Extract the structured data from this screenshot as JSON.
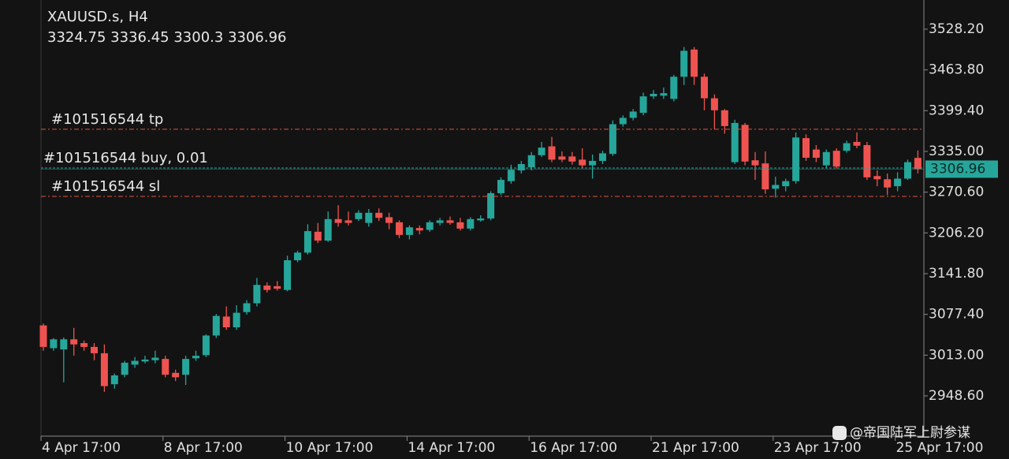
{
  "chart_data": {
    "type": "candlestick",
    "title": "XAUUSD.s, H4",
    "categories": [
      "4 Apr 17:00",
      null,
      null,
      null,
      null,
      null,
      null,
      null,
      null,
      null,
      null,
      null,
      "8 Apr 17:00",
      null,
      null,
      null,
      null,
      null,
      null,
      null,
      null,
      null,
      null,
      null,
      "10 Apr 17:00",
      null,
      null,
      null,
      null,
      null,
      null,
      null,
      null,
      null,
      null,
      null,
      "14 Apr 17:00",
      null,
      null,
      null,
      null,
      null,
      null,
      null,
      null,
      null,
      null,
      null,
      "16 Apr 17:00",
      null,
      null,
      null,
      null,
      null,
      null,
      null,
      null,
      null,
      null,
      null,
      "21 Apr 17:00",
      null,
      null,
      null,
      null,
      null,
      null,
      null,
      null,
      null,
      null,
      null,
      "23 Apr 17:00",
      null,
      null,
      null,
      null,
      null,
      null,
      null,
      null,
      null,
      null,
      null,
      "25 Apr 17:00",
      null,
      null
    ],
    "open": [
      3060,
      3024,
      3022,
      3038,
      3032,
      3026,
      3016,
      2967,
      2982,
      2998,
      3003,
      3005,
      3007,
      2985,
      2982,
      3008,
      3013,
      3044,
      3074,
      3057,
      3081,
      3095,
      3123,
      3122,
      3116,
      3163,
      3175,
      3208,
      3194,
      3228,
      3226,
      3228,
      3222,
      3238,
      3231,
      3223,
      3203,
      3214,
      3211,
      3222,
      3226,
      3223,
      3213,
      3226,
      3229,
      3269,
      3288,
      3305,
      3310,
      3329,
      3343,
      3327,
      3327,
      3322,
      3313,
      3320,
      3331,
      3378,
      3388,
      3396,
      3422,
      3423,
      3418,
      3453,
      3496,
      3453,
      3419,
      3400,
      3318,
      3377,
      3321,
      3316,
      3276,
      3280,
      3288,
      3356,
      3338,
      3313,
      3336,
      3336,
      3350,
      3345,
      3296,
      3291,
      3280,
      3292,
      3324.75
    ],
    "high": [
      3063,
      3040,
      3041,
      3056,
      3036,
      3032,
      3030,
      2984,
      3004,
      3010,
      3012,
      3020,
      3012,
      2990,
      3012,
      3020,
      3046,
      3078,
      3090,
      3092,
      3100,
      3135,
      3128,
      3130,
      3170,
      3178,
      3220,
      3222,
      3240,
      3250,
      3240,
      3242,
      3244,
      3245,
      3238,
      3226,
      3218,
      3218,
      3226,
      3230,
      3232,
      3230,
      3231,
      3234,
      3272,
      3294,
      3314,
      3320,
      3334,
      3350,
      3358,
      3335,
      3334,
      3340,
      3330,
      3336,
      3384,
      3392,
      3402,
      3428,
      3432,
      3436,
      3456,
      3500,
      3500,
      3458,
      3425,
      3402,
      3385,
      3380,
      3334,
      3335,
      3295,
      3292,
      3365,
      3362,
      3345,
      3338,
      3340,
      3352,
      3365,
      3350,
      3305,
      3300,
      3302,
      3322,
      3336.45
    ],
    "low": [
      3020,
      3020,
      2970,
      3012,
      3020,
      3005,
      2955,
      2960,
      2978,
      2993,
      3000,
      3000,
      2978,
      2972,
      2966,
      3004,
      3010,
      3040,
      3053,
      3053,
      3077,
      3090,
      3112,
      3115,
      3114,
      3160,
      3172,
      3190,
      3192,
      3216,
      3218,
      3225,
      3216,
      3225,
      3212,
      3198,
      3196,
      3204,
      3208,
      3218,
      3219,
      3210,
      3210,
      3224,
      3226,
      3266,
      3284,
      3300,
      3305,
      3326,
      3318,
      3318,
      3314,
      3308,
      3292,
      3315,
      3328,
      3374,
      3384,
      3392,
      3418,
      3418,
      3414,
      3440,
      3440,
      3400,
      3370,
      3363,
      3315,
      3313,
      3290,
      3268,
      3262,
      3272,
      3284,
      3320,
      3318,
      3308,
      3308,
      3333,
      3340,
      3290,
      3280,
      3266,
      3272,
      3290,
      3300.3
    ],
    "close": [
      3026,
      3038,
      3038,
      3030,
      3026,
      3016,
      2964,
      2981,
      3001,
      3004,
      3006,
      3009,
      2982,
      2978,
      3007,
      3012,
      3044,
      3075,
      3057,
      3080,
      3095,
      3124,
      3116,
      3118,
      3163,
      3175,
      3209,
      3194,
      3228,
      3222,
      3222,
      3238,
      3238,
      3230,
      3222,
      3203,
      3215,
      3210,
      3223,
      3226,
      3222,
      3213,
      3228,
      3229,
      3269,
      3290,
      3306,
      3315,
      3329,
      3341,
      3322,
      3322,
      3319,
      3313,
      3320,
      3332,
      3378,
      3388,
      3398,
      3422,
      3426,
      3427,
      3453,
      3494,
      3453,
      3419,
      3400,
      3375,
      3380,
      3319,
      3313,
      3275,
      3282,
      3288,
      3357,
      3325,
      3325,
      3334,
      3311,
      3348,
      3344,
      3294,
      3291,
      3278,
      3292,
      3318,
      3306.96
    ],
    "up_color": "#26a69a",
    "down_color": "#ef5350",
    "ylim": [
      2885.0,
      3574.3
    ],
    "yticks": [
      {
        "value": 3528.2,
        "label": "3528.20"
      },
      {
        "value": 3463.8,
        "label": "3463.80"
      },
      {
        "value": 3399.4,
        "label": "3399.40"
      },
      {
        "value": 3335.0,
        "label": "3335.00"
      },
      {
        "value": 3270.6,
        "label": "3270.60"
      },
      {
        "value": 3206.2,
        "label": "3206.20"
      },
      {
        "value": 3141.8,
        "label": "3141.80"
      },
      {
        "value": 3077.4,
        "label": "3077.40"
      },
      {
        "value": 3013.0,
        "label": "3013.00"
      },
      {
        "value": 2948.6,
        "label": "2948.60"
      }
    ],
    "levels": [
      {
        "label": "#101516544 tp",
        "value": 3370,
        "color": "#e0533f",
        "style": "dashdot"
      },
      {
        "label": "#101516544 buy, 0.01",
        "value": 3308.8,
        "color": "#26a69a",
        "style": "dash"
      },
      {
        "label": "#101516544 sl",
        "value": 3264,
        "color": "#e0533f",
        "style": "dashdot"
      }
    ],
    "watermark": "@帝国陆军上尉参谋"
  }
}
